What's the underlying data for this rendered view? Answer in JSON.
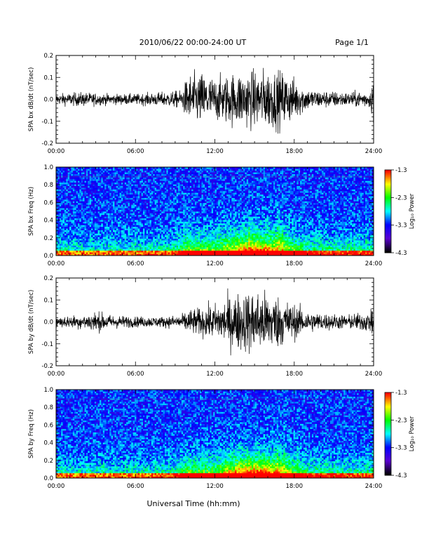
{
  "header": {
    "title": "2010/06/22  00:00-24:00 UT",
    "page_label": "Page 1/1"
  },
  "footer": {
    "xlabel": "Universal Time (hh:mm)"
  },
  "colorbar": {
    "label": "Log₁₀ Power",
    "ticks": [
      "-1.3",
      "-2.3",
      "-3.3",
      "-4.3"
    ],
    "colors": [
      "#ff0000",
      "#ffff00",
      "#00ff00",
      "#00ffff",
      "#0000ff",
      "#5a00d0",
      "#000000"
    ]
  },
  "chart_data": [
    {
      "type": "line",
      "ylabel": "SPA bx dB/dt (nT/sec)",
      "xlim": [
        0,
        24
      ],
      "ylim": [
        -0.2,
        0.2
      ],
      "x_ticks": [
        "00:00",
        "06:00",
        "12:00",
        "18:00",
        "24:00"
      ],
      "y_ticks": [
        "0.2",
        "0.1",
        "0.0",
        "-0.1",
        "-0.2"
      ],
      "envelope_hours": [
        0,
        2,
        4,
        6,
        8,
        9.5,
        10,
        11,
        12,
        13,
        14,
        15,
        16,
        17,
        18,
        19,
        20,
        22,
        23.8,
        24
      ],
      "envelope_amplitude": [
        0.03,
        0.04,
        0.03,
        0.03,
        0.04,
        0.05,
        0.14,
        0.15,
        0.12,
        0.14,
        0.16,
        0.16,
        0.17,
        0.16,
        0.12,
        0.06,
        0.05,
        0.04,
        0.05,
        0.2
      ]
    },
    {
      "type": "heatmap",
      "ylabel": "SPA bx Freq (Hz)",
      "xlim": [
        0,
        24
      ],
      "ylim": [
        0,
        1.0
      ],
      "x_ticks": [
        "00:00",
        "06:00",
        "12:00",
        "18:00",
        "24:00"
      ],
      "y_ticks": [
        "1.0",
        "0.8",
        "0.6",
        "0.4",
        "0.2",
        "0.0"
      ],
      "color_range": [
        -4.3,
        -1.3
      ],
      "activity_hours": [
        0,
        6,
        9,
        10,
        11,
        12,
        13,
        14,
        15,
        16,
        17,
        18,
        19,
        22,
        24
      ],
      "activity_level": [
        0.25,
        0.25,
        0.3,
        0.55,
        0.5,
        0.5,
        0.65,
        0.8,
        0.85,
        0.8,
        0.7,
        0.5,
        0.35,
        0.3,
        0.3
      ]
    },
    {
      "type": "line",
      "ylabel": "SPA by dB/dt (nT/sec)",
      "xlim": [
        0,
        24
      ],
      "ylim": [
        -0.2,
        0.2
      ],
      "x_ticks": [
        "00:00",
        "06:00",
        "12:00",
        "18:00",
        "24:00"
      ],
      "y_ticks": [
        "0.2",
        "0.1",
        "0.0",
        "-0.1",
        "-0.2"
      ],
      "envelope_hours": [
        0,
        2,
        3,
        4,
        6,
        8,
        9.5,
        10,
        11,
        12,
        13,
        14,
        15,
        16,
        17,
        18,
        19,
        20,
        22,
        23.8,
        24
      ],
      "envelope_amplitude": [
        0.03,
        0.04,
        0.06,
        0.04,
        0.03,
        0.03,
        0.04,
        0.07,
        0.08,
        0.1,
        0.14,
        0.17,
        0.18,
        0.17,
        0.14,
        0.1,
        0.06,
        0.05,
        0.04,
        0.06,
        0.15
      ]
    },
    {
      "type": "heatmap",
      "ylabel": "SPA by Freq (Hz)",
      "xlim": [
        0,
        24
      ],
      "ylim": [
        0,
        1.0
      ],
      "x_ticks": [
        "00:00",
        "06:00",
        "12:00",
        "18:00",
        "24:00"
      ],
      "y_ticks": [
        "1.0",
        "0.8",
        "0.6",
        "0.4",
        "0.2",
        "0.0"
      ],
      "color_range": [
        -4.3,
        -1.3
      ],
      "activity_hours": [
        0,
        6,
        9,
        10,
        11,
        12,
        13,
        14,
        15,
        16,
        17,
        18,
        19,
        22,
        24
      ],
      "activity_level": [
        0.25,
        0.25,
        0.3,
        0.5,
        0.5,
        0.5,
        0.7,
        0.85,
        0.9,
        0.85,
        0.75,
        0.5,
        0.35,
        0.3,
        0.3
      ]
    }
  ]
}
